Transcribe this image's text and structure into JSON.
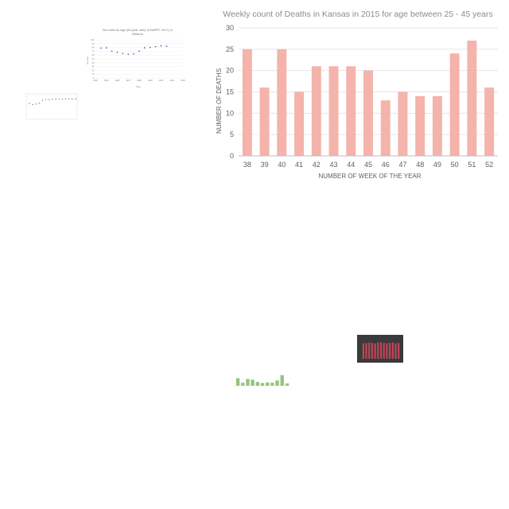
{
  "thumbnails": {
    "sex_ratio_belarus": {
      "title_line1": "Sex ratio by age (60 year olds) (UNWPP, 2017) in",
      "title_line2": "Belarus",
      "xlabel": "Years",
      "ylabel": "Sex ratio",
      "x_ticks": [
        "1940",
        "1950",
        "1960",
        "1970",
        "1980",
        "1990",
        "2000",
        "2010",
        "2020"
      ],
      "y_ticks": [
        "0",
        "10",
        "20",
        "30",
        "40",
        "50",
        "60",
        "70",
        "80",
        "90",
        "100"
      ],
      "points_y": [
        78,
        79,
        70,
        67,
        64,
        62,
        63,
        70,
        79,
        80,
        82,
        84,
        83
      ],
      "x_start_year": 1945,
      "x_step_year": 5,
      "xlim": [
        1940,
        2020
      ],
      "ylim": [
        0,
        100
      ],
      "point_color": "#4472c4"
    },
    "small_scatter": {
      "point_color": "#555555",
      "points_y": [
        0.62,
        0.58,
        0.6,
        0.63,
        0.75,
        0.78,
        0.77,
        0.79,
        0.8,
        0.8,
        0.79,
        0.8,
        0.8,
        0.79,
        0.8
      ]
    },
    "dark_bar": {
      "background": "#3a3a3a",
      "bar_color": "#c0455a",
      "values": [
        0.8,
        0.82,
        0.85,
        0.83,
        0.8,
        0.84,
        0.86,
        0.82,
        0.81,
        0.83,
        0.85,
        0.8,
        0.82
      ]
    },
    "green_bar": {
      "bar_color": "#93c47d",
      "values": [
        0.5,
        0.2,
        0.45,
        0.4,
        0.25,
        0.18,
        0.22,
        0.2,
        0.35,
        0.7,
        0.15
      ]
    }
  },
  "chart_data": {
    "type": "bar",
    "title": "Weekly count of Deaths in Kansas in 2015 for age between 25 - 45 years",
    "xlabel": "NUMBER OF WEEK OF THE YEAR",
    "ylabel": "NUMBER OF DEATHS",
    "categories": [
      "38",
      "39",
      "40",
      "41",
      "42",
      "43",
      "44",
      "45",
      "46",
      "47",
      "48",
      "49",
      "50",
      "51",
      "52"
    ],
    "values": [
      25,
      16,
      25,
      15,
      21,
      21,
      21,
      20,
      13,
      15,
      14,
      14,
      24,
      27,
      16
    ],
    "ylim": [
      0,
      30
    ],
    "y_ticks": [
      0,
      5,
      10,
      15,
      20,
      25,
      30
    ],
    "grid": true,
    "bar_color": "#f4b3ab"
  }
}
